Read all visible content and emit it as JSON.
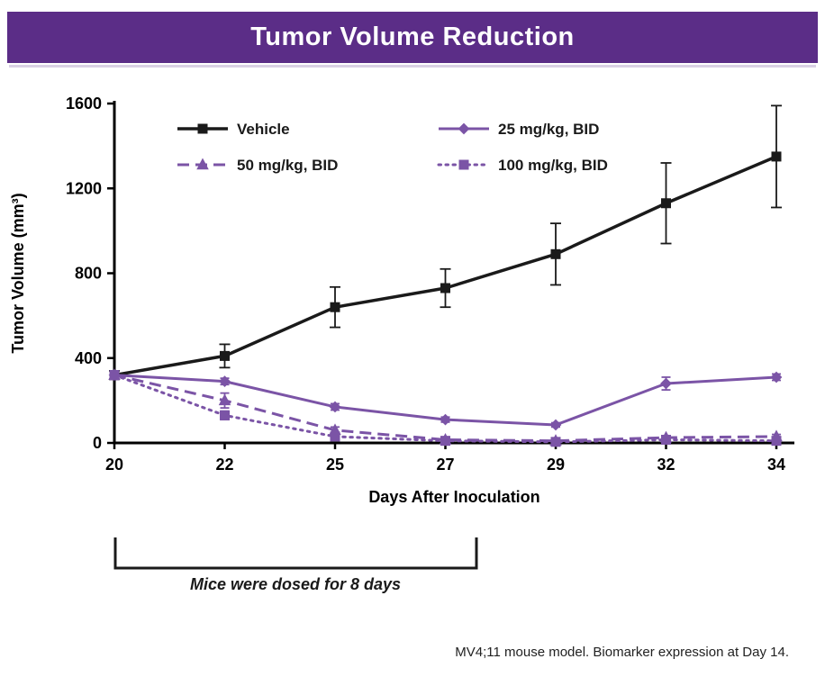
{
  "header": {
    "title": "Tumor Volume Reduction",
    "bar_color": "#5b2d87"
  },
  "footnote": "MV4;11 mouse model. Biomarker expression at Day 14.",
  "annotation": {
    "bracket_label": "Mice were dosed for 8 days"
  },
  "chart_data": {
    "type": "line",
    "title": "Tumor Volume Reduction",
    "xlabel": "Days After Inoculation",
    "ylabel": "Tumor Volume (mm³)",
    "x_categories": [
      "20",
      "22",
      "25",
      "27",
      "29",
      "32",
      "34"
    ],
    "ylim": [
      0,
      1600
    ],
    "yticks": [
      0,
      400,
      800,
      1200,
      1600
    ],
    "grid": false,
    "legend_position": "top-inside",
    "axis_color": "#000000",
    "series": [
      {
        "name": "Vehicle",
        "color": "#1a1a1a",
        "line": "solid",
        "marker": "square",
        "values": [
          320,
          410,
          640,
          730,
          890,
          1130,
          1350
        ],
        "errors": [
          20,
          55,
          95,
          90,
          145,
          190,
          240
        ]
      },
      {
        "name": "25 mg/kg, BID",
        "color": "#7b54a6",
        "line": "solid",
        "marker": "diamond",
        "values": [
          320,
          290,
          170,
          110,
          85,
          280,
          310
        ],
        "errors": [
          20,
          15,
          15,
          12,
          10,
          30,
          15
        ]
      },
      {
        "name": "50 mg/kg, BID",
        "color": "#7b54a6",
        "line": "dashed",
        "marker": "triangle",
        "values": [
          320,
          200,
          60,
          15,
          10,
          25,
          30
        ],
        "errors": [
          20,
          35,
          15,
          8,
          5,
          8,
          10
        ]
      },
      {
        "name": "100 mg/kg, BID",
        "color": "#7b54a6",
        "line": "dotted",
        "marker": "square",
        "values": [
          320,
          130,
          30,
          10,
          5,
          15,
          10
        ],
        "errors": [
          15,
          20,
          10,
          5,
          5,
          8,
          5
        ]
      }
    ]
  }
}
